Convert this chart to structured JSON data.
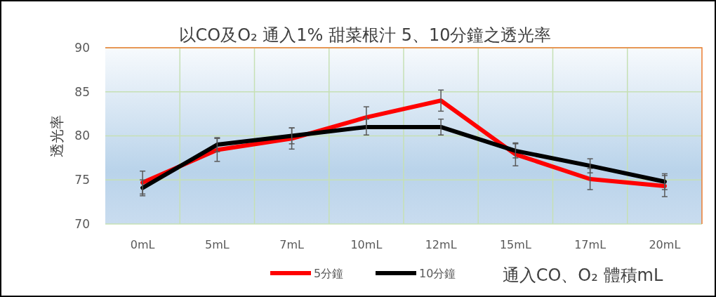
{
  "chart_data": {
    "type": "line",
    "title": "以CO及O₂ 通入1% 甜菜根汁 5、10分鐘之透光率",
    "xlabel": "通入CO、O₂ 體積mL",
    "ylabel": "透光率",
    "categories": [
      "0mL",
      "5mL",
      "7mL",
      "10mL",
      "12mL",
      "15mL",
      "17mL",
      "20mL"
    ],
    "series": [
      {
        "name": "5分鐘",
        "color": "#ff0000",
        "values": [
          74.7,
          78.4,
          79.7,
          82.1,
          84.0,
          77.9,
          75.1,
          74.3
        ],
        "errors": [
          1.3,
          1.3,
          1.2,
          1.2,
          1.2,
          1.3,
          1.2,
          1.2
        ]
      },
      {
        "name": "10分鐘",
        "color": "#000000",
        "values": [
          74.1,
          79.0,
          80.0,
          81.0,
          81.0,
          78.3,
          76.6,
          74.8
        ],
        "errors": [
          0.9,
          0.8,
          0.9,
          0.9,
          0.9,
          0.8,
          0.8,
          0.9
        ]
      }
    ],
    "ylim": [
      70,
      90
    ],
    "yticks": [
      70,
      75,
      80,
      85,
      90
    ],
    "grid": true,
    "legend": "bottom",
    "marker": "none",
    "line_style": "solid"
  }
}
